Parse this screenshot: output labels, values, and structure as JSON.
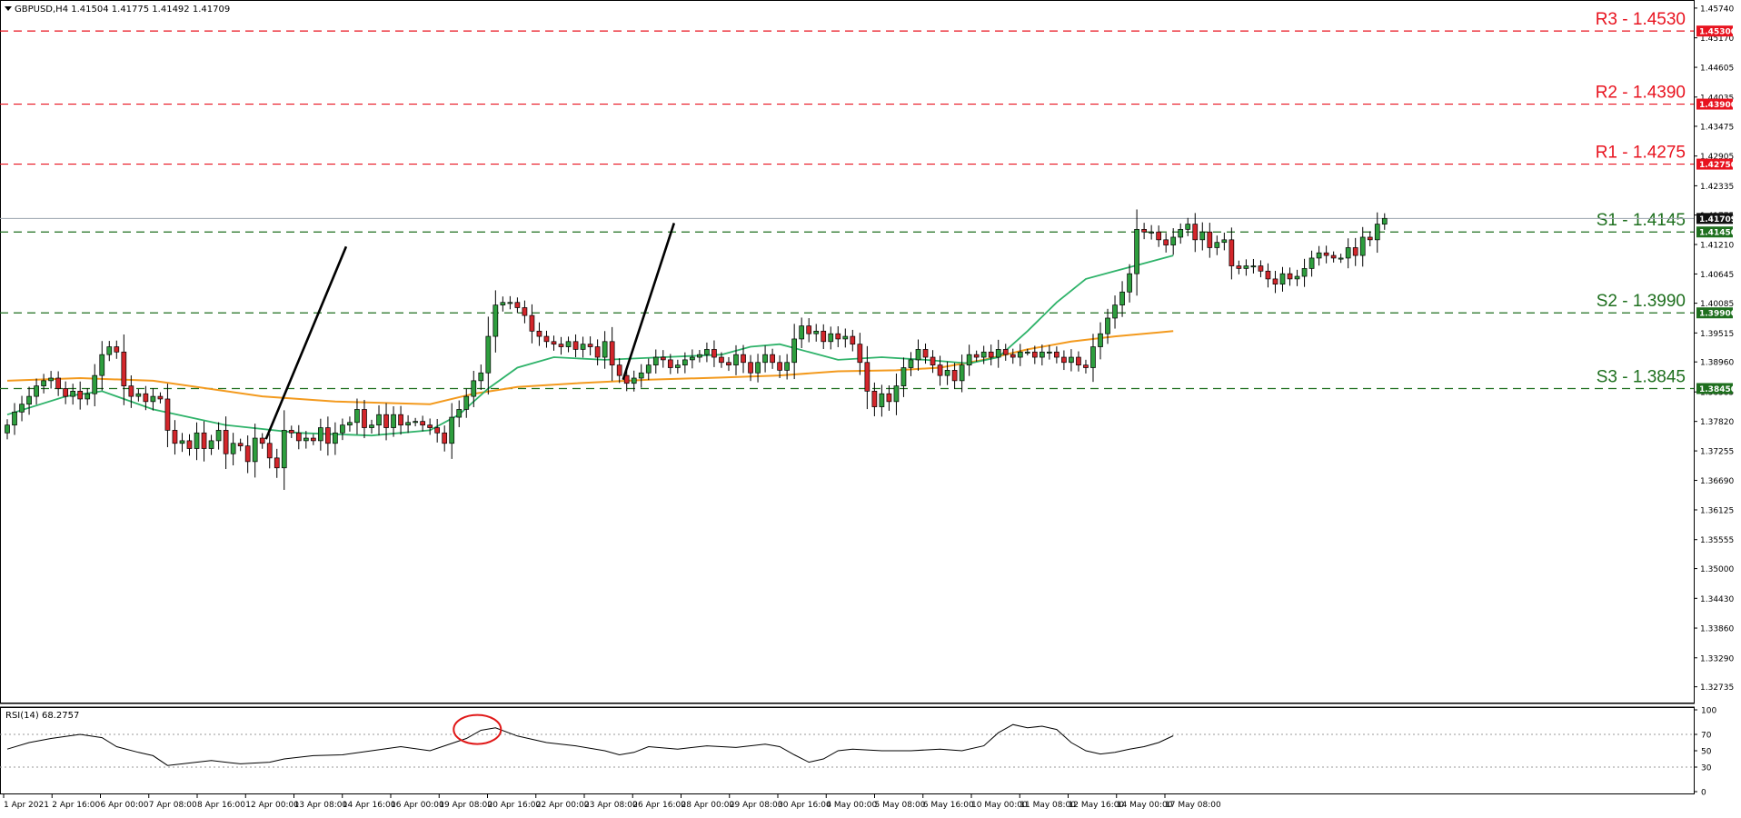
{
  "chart_data": {
    "type": "candlestick",
    "header": "GBPUSD,H4  1.41504 1.41775 1.41492 1.41709",
    "symbol": "GBPUSD",
    "timeframe": "H4",
    "ohlc_readout": [
      1.41504,
      1.41775,
      1.41492,
      1.41709
    ],
    "last_price": 1.41709,
    "last_price_label": "1.41709",
    "ylim": [
      1.3245,
      1.4586
    ],
    "price_ticks": [
      "1.45740",
      "1.45170",
      "1.44605",
      "1.44035",
      "1.43475",
      "1.42905",
      "1.42335",
      "1.41775",
      "1.41210",
      "1.40645",
      "1.40085",
      "1.39515",
      "1.38960",
      "1.38385",
      "1.37820",
      "1.37255",
      "1.36690",
      "1.36125",
      "1.35555",
      "1.35000",
      "1.34430",
      "1.33860",
      "1.33290",
      "1.32735"
    ],
    "x_labels": [
      "1 Apr 2021",
      "2 Apr 16:00",
      "6 Apr 00:00",
      "7 Apr 08:00",
      "8 Apr 16:00",
      "12 Apr 00:00",
      "13 Apr 08:00",
      "14 Apr 16:00",
      "16 Apr 00:00",
      "19 Apr 08:00",
      "20 Apr 16:00",
      "22 Apr 00:00",
      "23 Apr 08:00",
      "26 Apr 16:00",
      "28 Apr 00:00",
      "29 Apr 08:00",
      "30 Apr 16:00",
      "4 May 00:00",
      "5 May 08:00",
      "6 May 16:00",
      "10 May 00:00",
      "11 May 08:00",
      "12 May 16:00",
      "14 May 00:00",
      "17 May 08:00"
    ],
    "levels": [
      {
        "name": "R3",
        "value": 1.453,
        "label": "R3 - 1.4530",
        "tag": "1.45300",
        "color": "#e8131f"
      },
      {
        "name": "R2",
        "value": 1.439,
        "label": "R2 - 1.4390",
        "tag": "1.43900",
        "color": "#e8131f"
      },
      {
        "name": "R1",
        "value": 1.4275,
        "label": "R1 - 1.4275",
        "tag": "1.42750",
        "color": "#e8131f"
      },
      {
        "name": "S1",
        "value": 1.4145,
        "label": "S1 - 1.4145",
        "tag": "1.41450",
        "color": "#1e6f1e"
      },
      {
        "name": "S2",
        "value": 1.399,
        "label": "S2 - 1.3990",
        "tag": "1.39900",
        "color": "#1e6f1e"
      },
      {
        "name": "S3",
        "value": 1.3845,
        "label": "S3 - 1.3845",
        "tag": "1.38450",
        "color": "#1e6f1e"
      }
    ],
    "trend_lines": [
      {
        "from": [
          35.5,
          1.3748
        ],
        "to": [
          46.5,
          1.4117
        ]
      },
      {
        "from": [
          84.5,
          1.3862
        ],
        "to": [
          91.5,
          1.4162
        ]
      }
    ],
    "closes": [
      1.3775,
      1.38,
      1.3815,
      1.383,
      1.385,
      1.386,
      1.3865,
      1.3845,
      1.383,
      1.384,
      1.3825,
      1.3835,
      1.387,
      1.391,
      1.3925,
      1.3915,
      1.385,
      1.383,
      1.3835,
      1.382,
      1.383,
      1.3825,
      1.3765,
      1.374,
      1.3745,
      1.373,
      1.376,
      1.373,
      1.3745,
      1.3765,
      1.372,
      1.374,
      1.3735,
      1.3705,
      1.375,
      1.374,
      1.3712,
      1.3693,
      1.3765,
      1.376,
      1.3745,
      1.375,
      1.3745,
      1.377,
      1.374,
      1.376,
      1.3775,
      1.378,
      1.3805,
      1.377,
      1.3775,
      1.3795,
      1.377,
      1.3795,
      1.3775,
      1.378,
      1.3782,
      1.3775,
      1.377,
      1.376,
      1.374,
      1.379,
      1.3805,
      1.383,
      1.386,
      1.3875,
      1.3945,
      1.4005,
      1.401,
      1.401,
      1.4,
      1.3985,
      1.3955,
      1.3945,
      1.3935,
      1.393,
      1.3925,
      1.3935,
      1.392,
      1.393,
      1.3925,
      1.3905,
      1.3935,
      1.389,
      1.387,
      1.3855,
      1.3865,
      1.3875,
      1.389,
      1.3905,
      1.39,
      1.3885,
      1.389,
      1.39,
      1.3905,
      1.391,
      1.392,
      1.3905,
      1.3895,
      1.389,
      1.391,
      1.3895,
      1.3875,
      1.3895,
      1.391,
      1.3895,
      1.388,
      1.3895,
      1.394,
      1.3965,
      1.395,
      1.3955,
      1.3935,
      1.395,
      1.394,
      1.3945,
      1.393,
      1.3895,
      1.384,
      1.381,
      1.3835,
      1.382,
      1.385,
      1.3885,
      1.39,
      1.392,
      1.3905,
      1.389,
      1.387,
      1.388,
      1.386,
      1.389,
      1.391,
      1.3905,
      1.3915,
      1.3905,
      1.392,
      1.391,
      1.3905,
      1.3915,
      1.3915,
      1.3905,
      1.3915,
      1.3915,
      1.3905,
      1.3895,
      1.3905,
      1.389,
      1.3885,
      1.3925,
      1.395,
      1.398,
      1.4005,
      1.403,
      1.4065,
      1.415,
      1.4145,
      1.4145,
      1.413,
      1.412,
      1.4135,
      1.415,
      1.416,
      1.413,
      1.4145,
      1.4115,
      1.4125,
      1.413,
      1.408,
      1.4075,
      1.408,
      1.408,
      1.407,
      1.4055,
      1.4045,
      1.4065,
      1.4055,
      1.406,
      1.4075,
      1.4095,
      1.4105,
      1.41,
      1.4095,
      1.4095,
      1.4115,
      1.41,
      1.4135,
      1.413,
      1.416,
      1.4171
    ],
    "ma_fast": [
      [
        0,
        1.3795
      ],
      [
        8,
        1.383
      ],
      [
        13,
        1.384
      ],
      [
        20,
        1.3805
      ],
      [
        30,
        1.3775
      ],
      [
        40,
        1.376
      ],
      [
        50,
        1.3755
      ],
      [
        58,
        1.3765
      ],
      [
        62,
        1.3795
      ],
      [
        66,
        1.3845
      ],
      [
        70,
        1.3885
      ],
      [
        75,
        1.3905
      ],
      [
        82,
        1.39
      ],
      [
        90,
        1.3905
      ],
      [
        98,
        1.391
      ],
      [
        102,
        1.3925
      ],
      [
        106,
        1.393
      ],
      [
        110,
        1.3915
      ],
      [
        114,
        1.39
      ],
      [
        120,
        1.3905
      ],
      [
        126,
        1.39
      ],
      [
        132,
        1.3893
      ],
      [
        136,
        1.3905
      ],
      [
        140,
        1.3955
      ],
      [
        144,
        1.401
      ],
      [
        148,
        1.4055
      ],
      [
        152,
        1.407
      ],
      [
        156,
        1.4085
      ],
      [
        160,
        1.41
      ]
    ],
    "ma_slow": [
      [
        0,
        1.386
      ],
      [
        10,
        1.3865
      ],
      [
        20,
        1.386
      ],
      [
        35,
        1.383
      ],
      [
        45,
        1.382
      ],
      [
        58,
        1.3815
      ],
      [
        64,
        1.3835
      ],
      [
        70,
        1.3848
      ],
      [
        78,
        1.3855
      ],
      [
        88,
        1.3862
      ],
      [
        98,
        1.3866
      ],
      [
        106,
        1.387
      ],
      [
        114,
        1.3878
      ],
      [
        122,
        1.388
      ],
      [
        128,
        1.3885
      ],
      [
        134,
        1.39
      ],
      [
        140,
        1.392
      ],
      [
        146,
        1.3935
      ],
      [
        152,
        1.3945
      ],
      [
        160,
        1.3955
      ]
    ],
    "rsi": {
      "label": "RSI(14) 68.2757",
      "value": 68.2757,
      "levels": [
        30,
        70
      ],
      "ticks": [
        "100",
        "70",
        "50",
        "30",
        "0"
      ],
      "ylim": [
        0,
        100
      ],
      "series": [
        [
          0,
          52
        ],
        [
          3,
          60
        ],
        [
          6,
          65
        ],
        [
          10,
          70
        ],
        [
          13,
          66
        ],
        [
          15,
          55
        ],
        [
          18,
          48
        ],
        [
          20,
          44
        ],
        [
          22,
          32
        ],
        [
          25,
          35
        ],
        [
          28,
          38
        ],
        [
          32,
          34
        ],
        [
          36,
          36
        ],
        [
          38,
          40
        ],
        [
          42,
          44
        ],
        [
          46,
          45
        ],
        [
          50,
          50
        ],
        [
          54,
          55
        ],
        [
          58,
          50
        ],
        [
          60,
          56
        ],
        [
          63,
          65
        ],
        [
          65,
          75
        ],
        [
          67,
          78
        ],
        [
          70,
          68
        ],
        [
          74,
          60
        ],
        [
          78,
          56
        ],
        [
          82,
          50
        ],
        [
          84,
          45
        ],
        [
          86,
          48
        ],
        [
          88,
          55
        ],
        [
          92,
          52
        ],
        [
          96,
          56
        ],
        [
          100,
          54
        ],
        [
          104,
          58
        ],
        [
          106,
          55
        ],
        [
          108,
          45
        ],
        [
          110,
          36
        ],
        [
          112,
          40
        ],
        [
          114,
          50
        ],
        [
          116,
          52
        ],
        [
          120,
          50
        ],
        [
          124,
          50
        ],
        [
          128,
          52
        ],
        [
          131,
          50
        ],
        [
          134,
          56
        ],
        [
          136,
          72
        ],
        [
          138,
          82
        ],
        [
          140,
          78
        ],
        [
          142,
          80
        ],
        [
          144,
          76
        ],
        [
          146,
          60
        ],
        [
          148,
          50
        ],
        [
          150,
          46
        ],
        [
          152,
          48
        ],
        [
          154,
          52
        ],
        [
          156,
          55
        ],
        [
          158,
          60
        ],
        [
          160,
          68.3
        ]
      ],
      "highlight": [
        64.5,
        76
      ]
    }
  }
}
